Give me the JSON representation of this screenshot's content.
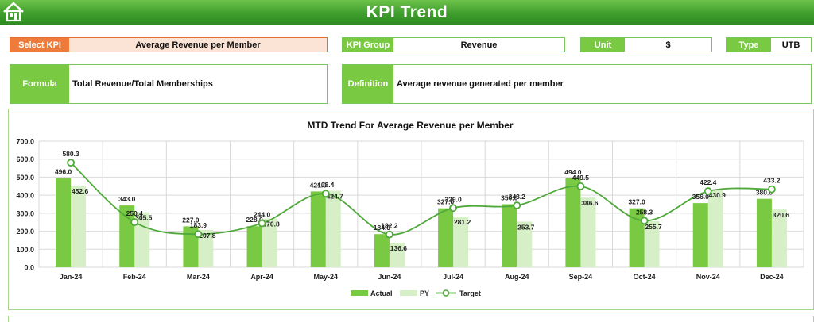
{
  "header": {
    "title": "KPI Trend"
  },
  "filters": {
    "select_kpi": {
      "label": "Select KPI",
      "value": "Average Revenue per Member"
    },
    "kpi_group": {
      "label": "KPI Group",
      "value": "Revenue"
    },
    "unit": {
      "label": "Unit",
      "value": "$"
    },
    "type": {
      "label": "Type",
      "value": "UTB"
    }
  },
  "formula": {
    "label": "Formula",
    "value": "Total Revenue/Total Memberships"
  },
  "definition": {
    "label": "Definition",
    "value": "Average revenue generated per member"
  },
  "colors": {
    "actual": "#7ac943",
    "py": "#d6efc6",
    "target": "#4fa83a",
    "banner": "#3f9e2c"
  },
  "chart_data": {
    "type": "bar",
    "title": "MTD Trend For Average Revenue per Member",
    "categories": [
      "Jan-24",
      "Feb-24",
      "Mar-24",
      "Apr-24",
      "May-24",
      "Jun-24",
      "Jul-24",
      "Aug-24",
      "Sep-24",
      "Oct-24",
      "Nov-24",
      "Dec-24"
    ],
    "series": [
      {
        "name": "Actual",
        "kind": "bar",
        "values": [
          496.0,
          343.0,
          227.0,
          228.0,
          421.0,
          184.0,
          327.0,
          350.0,
          494.0,
          327.0,
          356.0,
          380.0
        ]
      },
      {
        "name": "PY",
        "kind": "bar",
        "values": [
          452.6,
          305.5,
          207.8,
          270.8,
          424.7,
          136.6,
          281.2,
          253.7,
          386.6,
          255.7,
          430.9,
          320.6
        ]
      },
      {
        "name": "Target",
        "kind": "line",
        "values": [
          580.3,
          250.4,
          183.9,
          244.0,
          408.4,
          182.2,
          329.0,
          343.2,
          449.5,
          258.3,
          422.4,
          433.2
        ]
      }
    ],
    "ylim": [
      0,
      700
    ],
    "yticks": [
      "0.0",
      "100.0",
      "200.0",
      "300.0",
      "400.0",
      "500.0",
      "600.0",
      "700.0"
    ],
    "grid": true,
    "legend": "bottom"
  }
}
